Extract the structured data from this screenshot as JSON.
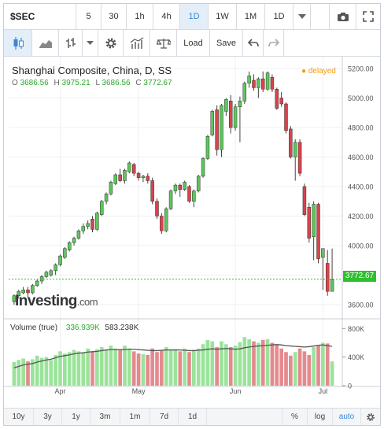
{
  "toolbar": {
    "symbol": "$SEC",
    "intervals": [
      "5",
      "30",
      "1h",
      "4h",
      "1D",
      "1W",
      "1M",
      "1D"
    ],
    "active_interval_index": 4,
    "load_label": "Load",
    "save_label": "Save"
  },
  "chart": {
    "title": "Shanghai Composite, China, D, SS",
    "ohlc": {
      "o_label": "O",
      "o": "3686.56",
      "h_label": "H",
      "h": "3975.21",
      "l_label": "L",
      "l": "3686.56",
      "c_label": "C",
      "c": "3772.67"
    },
    "status": "delayed",
    "last_price": "3772.67",
    "logo_main": "Investing",
    "logo_suffix": ".com",
    "volume_label": "Volume (true)",
    "volume_values": [
      "336.939K",
      "583.238K"
    ],
    "colors": {
      "up": "#5cc75c",
      "down": "#d9434b",
      "accent": "#3a87d8",
      "delayed": "#f39c12"
    }
  },
  "chart_data": {
    "type": "candlestick",
    "y_ticks": [
      "5200.00",
      "5000.00",
      "4800.00",
      "4600.00",
      "4400.00",
      "4200.00",
      "4000.00",
      "3800.00",
      "3600.00"
    ],
    "ylim": [
      3520,
      5280
    ],
    "volume_ticks": [
      "800K",
      "400K",
      "0"
    ],
    "volume_ylim": [
      0,
      880
    ],
    "x_ticks": [
      "Apr",
      "May",
      "Jun",
      "Jul"
    ],
    "x_tick_bar_index": [
      10,
      27,
      48,
      67
    ],
    "candles": [
      {
        "o": 3620,
        "h": 3670,
        "l": 3600,
        "c": 3660
      },
      {
        "o": 3660,
        "h": 3700,
        "l": 3640,
        "c": 3690
      },
      {
        "o": 3680,
        "h": 3720,
        "l": 3670,
        "c": 3700
      },
      {
        "o": 3700,
        "h": 3720,
        "l": 3650,
        "c": 3680
      },
      {
        "o": 3680,
        "h": 3740,
        "l": 3670,
        "c": 3730
      },
      {
        "o": 3730,
        "h": 3770,
        "l": 3720,
        "c": 3760
      },
      {
        "o": 3760,
        "h": 3800,
        "l": 3740,
        "c": 3790
      },
      {
        "o": 3790,
        "h": 3830,
        "l": 3780,
        "c": 3820
      },
      {
        "o": 3800,
        "h": 3840,
        "l": 3790,
        "c": 3830
      },
      {
        "o": 3830,
        "h": 3880,
        "l": 3800,
        "c": 3870
      },
      {
        "o": 3870,
        "h": 3940,
        "l": 3860,
        "c": 3930
      },
      {
        "o": 3920,
        "h": 3990,
        "l": 3910,
        "c": 3980
      },
      {
        "o": 3970,
        "h": 4030,
        "l": 3960,
        "c": 4020
      },
      {
        "o": 4020,
        "h": 4060,
        "l": 4000,
        "c": 4050
      },
      {
        "o": 4050,
        "h": 4110,
        "l": 4040,
        "c": 4100
      },
      {
        "o": 4100,
        "h": 4150,
        "l": 4080,
        "c": 4130
      },
      {
        "o": 4130,
        "h": 4170,
        "l": 4110,
        "c": 4150
      },
      {
        "o": 4180,
        "h": 4200,
        "l": 4090,
        "c": 4110
      },
      {
        "o": 4110,
        "h": 4230,
        "l": 4100,
        "c": 4220
      },
      {
        "o": 4210,
        "h": 4310,
        "l": 4200,
        "c": 4300
      },
      {
        "o": 4300,
        "h": 4360,
        "l": 4280,
        "c": 4350
      },
      {
        "o": 4350,
        "h": 4440,
        "l": 4340,
        "c": 4430
      },
      {
        "o": 4420,
        "h": 4490,
        "l": 4410,
        "c": 4480
      },
      {
        "o": 4480,
        "h": 4520,
        "l": 4430,
        "c": 4440
      },
      {
        "o": 4440,
        "h": 4520,
        "l": 4420,
        "c": 4510
      },
      {
        "o": 4500,
        "h": 4570,
        "l": 4490,
        "c": 4560
      },
      {
        "o": 4550,
        "h": 4560,
        "l": 4470,
        "c": 4490
      },
      {
        "o": 4490,
        "h": 4500,
        "l": 4440,
        "c": 4460
      },
      {
        "o": 4460,
        "h": 4480,
        "l": 4430,
        "c": 4470
      },
      {
        "o": 4470,
        "h": 4490,
        "l": 4420,
        "c": 4440
      },
      {
        "o": 4440,
        "h": 4460,
        "l": 4280,
        "c": 4300
      },
      {
        "o": 4300,
        "h": 4320,
        "l": 4180,
        "c": 4200
      },
      {
        "o": 4200,
        "h": 4220,
        "l": 4080,
        "c": 4100
      },
      {
        "o": 4100,
        "h": 4260,
        "l": 4090,
        "c": 4250
      },
      {
        "o": 4250,
        "h": 4380,
        "l": 4240,
        "c": 4370
      },
      {
        "o": 4370,
        "h": 4420,
        "l": 4350,
        "c": 4410
      },
      {
        "o": 4410,
        "h": 4420,
        "l": 4330,
        "c": 4380
      },
      {
        "o": 4380,
        "h": 4440,
        "l": 4370,
        "c": 4430
      },
      {
        "o": 4400,
        "h": 4410,
        "l": 4290,
        "c": 4300
      },
      {
        "o": 4300,
        "h": 4380,
        "l": 4260,
        "c": 4370
      },
      {
        "o": 4370,
        "h": 4480,
        "l": 4360,
        "c": 4470
      },
      {
        "o": 4470,
        "h": 4600,
        "l": 4460,
        "c": 4590
      },
      {
        "o": 4590,
        "h": 4750,
        "l": 4580,
        "c": 4740
      },
      {
        "o": 4750,
        "h": 4920,
        "l": 4740,
        "c": 4910
      },
      {
        "o": 4920,
        "h": 4950,
        "l": 4610,
        "c": 4650
      },
      {
        "o": 4650,
        "h": 4960,
        "l": 4600,
        "c": 4950
      },
      {
        "o": 4910,
        "h": 5000,
        "l": 4880,
        "c": 4990
      },
      {
        "o": 4980,
        "h": 5020,
        "l": 4760,
        "c": 4800
      },
      {
        "o": 4800,
        "h": 4960,
        "l": 4780,
        "c": 4940
      },
      {
        "o": 4940,
        "h": 5010,
        "l": 4700,
        "c": 4980
      },
      {
        "o": 4980,
        "h": 5110,
        "l": 4960,
        "c": 5100
      },
      {
        "o": 5100,
        "h": 5180,
        "l": 5070,
        "c": 5150
      },
      {
        "o": 5120,
        "h": 5160,
        "l": 5050,
        "c": 5070
      },
      {
        "o": 5070,
        "h": 5140,
        "l": 5000,
        "c": 5130
      },
      {
        "o": 5130,
        "h": 5180,
        "l": 5040,
        "c": 5060
      },
      {
        "o": 5060,
        "h": 5180,
        "l": 5050,
        "c": 5170
      },
      {
        "o": 5140,
        "h": 5160,
        "l": 5040,
        "c": 5060
      },
      {
        "o": 5060,
        "h": 5070,
        "l": 4920,
        "c": 4930
      },
      {
        "o": 5000,
        "h": 5040,
        "l": 4940,
        "c": 4960
      },
      {
        "o": 4960,
        "h": 4970,
        "l": 4760,
        "c": 4780
      },
      {
        "o": 4790,
        "h": 4810,
        "l": 4590,
        "c": 4600
      },
      {
        "o": 4600,
        "h": 4720,
        "l": 4440,
        "c": 4700
      },
      {
        "o": 4700,
        "h": 4720,
        "l": 4470,
        "c": 4490
      },
      {
        "o": 4400,
        "h": 4420,
        "l": 4200,
        "c": 4210
      },
      {
        "o": 4260,
        "h": 4290,
        "l": 4020,
        "c": 4050
      },
      {
        "o": 4060,
        "h": 4300,
        "l": 3900,
        "c": 4280
      },
      {
        "o": 4280,
        "h": 4290,
        "l": 3880,
        "c": 3910
      },
      {
        "o": 3920,
        "h": 3980,
        "l": 3700,
        "c": 3980
      },
      {
        "o": 3880,
        "h": 3970,
        "l": 3660,
        "c": 3690
      },
      {
        "o": 3690,
        "h": 3980,
        "l": 3690,
        "c": 3770
      }
    ],
    "volume": [
      330,
      360,
      380,
      340,
      370,
      420,
      390,
      400,
      360,
      430,
      480,
      450,
      470,
      500,
      480,
      460,
      520,
      470,
      510,
      540,
      500,
      560,
      520,
      500,
      560,
      520,
      480,
      450,
      440,
      430,
      520,
      470,
      490,
      540,
      500,
      510,
      480,
      520,
      470,
      500,
      520,
      580,
      640,
      620,
      540,
      620,
      580,
      540,
      560,
      610,
      680,
      650,
      620,
      600,
      640,
      650,
      600,
      580,
      520,
      470,
      420,
      470,
      520,
      480,
      430,
      540,
      560,
      600,
      590,
      340
    ],
    "volume_ma": [
      250,
      270,
      290,
      300,
      310,
      330,
      345,
      360,
      370,
      390,
      410,
      420,
      430,
      445,
      455,
      460,
      470,
      475,
      480,
      490,
      500,
      505,
      505,
      505,
      505,
      510,
      510,
      505,
      500,
      495,
      490,
      490,
      495,
      500,
      500,
      500,
      500,
      495,
      490,
      490,
      495,
      500,
      510,
      515,
      510,
      515,
      520,
      515,
      510,
      515,
      530,
      540,
      550,
      555,
      560,
      565,
      570,
      575,
      570,
      560,
      555,
      550,
      545,
      540,
      545,
      555,
      565,
      570,
      560,
      550
    ],
    "last_price": 3772.67
  },
  "bottom_bar": {
    "ranges": [
      "10y",
      "3y",
      "1y",
      "3m",
      "1m",
      "7d",
      "1d"
    ],
    "percent_label": "%",
    "log_label": "log",
    "auto_label": "auto"
  }
}
